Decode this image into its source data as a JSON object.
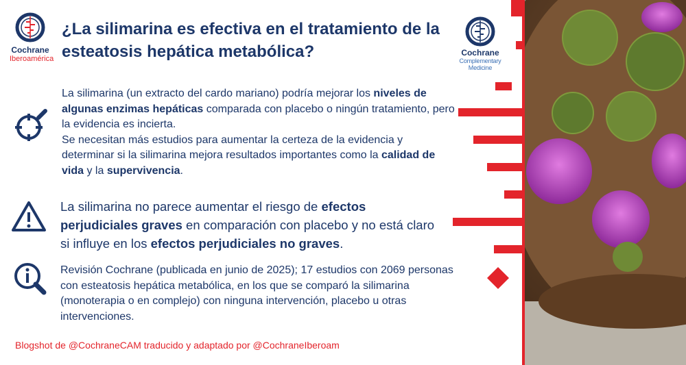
{
  "logos": [
    {
      "name": "Cochrane",
      "sub": "Iberoamérica"
    },
    {
      "name": "Cochrane",
      "sub": "Complementary Medicine"
    }
  ],
  "title": "¿La silimarina es efectiva en el tratamiento de la esteatosis hepática metabólica?",
  "sections": [
    {
      "paragraphs": [
        [
          {
            "text": "La silimarina (un extracto del cardo mariano) podría mejorar los ",
            "bold": false
          },
          {
            "text": "niveles de algunas enzimas hepáticas",
            "bold": true
          },
          {
            "text": " comparada con placebo o ningún tratamiento, pero la evidencia es incierta.",
            "bold": false
          }
        ],
        [
          {
            "text": "Se necesitan más estudios para aumentar la certeza de la evidencia y determinar si la silimarina mejora resultados importantes como la ",
            "bold": false
          },
          {
            "text": "calidad de vida",
            "bold": true
          },
          {
            "text": " y la ",
            "bold": false
          },
          {
            "text": "supervivencia",
            "bold": true
          },
          {
            "text": ".",
            "bold": false
          }
        ]
      ]
    },
    {
      "paragraphs": [
        [
          {
            "text": "La silimarina no parece aumentar el riesgo de ",
            "bold": false
          },
          {
            "text": "efectos perjudiciales graves",
            "bold": true
          },
          {
            "text": " en comparación con placebo y no está claro si influye en los ",
            "bold": false
          },
          {
            "text": "efectos perjudiciales no graves",
            "bold": true
          },
          {
            "text": ".",
            "bold": false
          }
        ]
      ]
    },
    {
      "paragraphs": [
        [
          {
            "text": "Revisión Cochrane (publicada en junio de 2025); 17 estudios con 2069 personas con esteatosis hepática metabólica, en los que se comparó la silimarina (monoterapia o en complejo) con ninguna intervención, placebo u otras intervenciones.",
            "bold": false
          }
        ]
      ]
    }
  ],
  "footer": "Blogshot de @CochraneCAM traducido y adaptado por @CochraneIberoam"
}
